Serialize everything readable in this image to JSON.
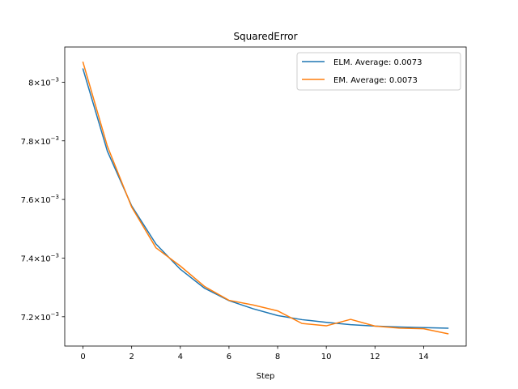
{
  "chart_data": {
    "type": "line",
    "title": "SquaredError",
    "xlabel": "Step",
    "ylabel": "",
    "xlim": [
      -0.75,
      15.75
    ],
    "ylim": [
      0.0071,
      0.00812
    ],
    "x": [
      0,
      1,
      2,
      3,
      4,
      5,
      6,
      7,
      8,
      9,
      10,
      11,
      12,
      13,
      14,
      15
    ],
    "xticks": [
      0,
      2,
      4,
      6,
      8,
      10,
      12,
      14
    ],
    "xtick_labels": [
      "0",
      "2",
      "4",
      "6",
      "8",
      "10",
      "12",
      "14"
    ],
    "yticks": [
      0.0072,
      0.0074,
      0.0076,
      0.0078,
      0.008
    ],
    "ytick_mantissas": [
      "7.2",
      "7.4",
      "7.6",
      "7.8",
      "8"
    ],
    "ytick_base": "10",
    "ytick_exp": "−3",
    "grid": false,
    "legend_position": "top-right",
    "series": [
      {
        "name": "ELM. Average: 0.0073",
        "color": "#1f77b4",
        "values": [
          0.008045,
          0.007765,
          0.007578,
          0.007448,
          0.007362,
          0.007297,
          0.007255,
          0.007227,
          0.007204,
          0.00719,
          0.007181,
          0.007173,
          0.007168,
          0.007165,
          0.007163,
          0.007161
        ]
      },
      {
        "name": "EM. Average: 0.0073",
        "color": "#ff7f0e",
        "values": [
          0.008068,
          0.007782,
          0.007574,
          0.007435,
          0.007373,
          0.007303,
          0.007256,
          0.00724,
          0.00722,
          0.007177,
          0.007169,
          0.007191,
          0.007168,
          0.007161,
          0.007159,
          0.007142
        ]
      }
    ]
  }
}
